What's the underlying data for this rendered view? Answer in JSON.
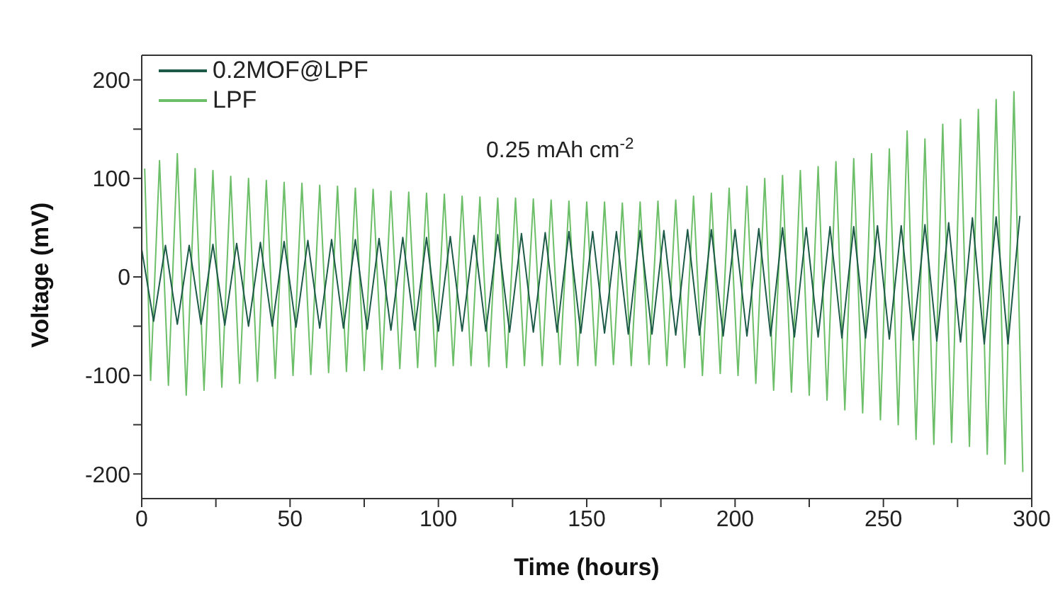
{
  "chart_data": {
    "type": "line",
    "xlabel": "Time (hours)",
    "ylabel": "Voltage (mV)",
    "annotations": [
      "0.25 mAh cm$^{-2}$"
    ],
    "xlim": [
      0,
      300
    ],
    "xticks": [
      0,
      {
        "value": 25,
        "label": null
      },
      50,
      {
        "value": 75,
        "label": null
      },
      100,
      {
        "value": 125,
        "label": null
      },
      150,
      {
        "value": 175,
        "label": null
      },
      200,
      {
        "value": 225,
        "label": null
      },
      250,
      {
        "value": 275,
        "label": null
      },
      300
    ],
    "ylim": [
      -225,
      225
    ],
    "yticks": [
      -200,
      {
        "value": -150,
        "label": null
      },
      -100,
      {
        "value": -50,
        "label": null
      },
      0,
      {
        "value": 50,
        "label": null
      },
      100,
      {
        "value": 150,
        "label": null
      },
      200
    ],
    "legend": "top left",
    "marker": "none",
    "line_style": "solid",
    "series": [
      {
        "name": "0.2MOF@LPF",
        "color": "#1d5a48",
        "x": [
          0,
          4,
          8,
          12,
          16,
          20,
          24,
          28,
          32,
          36,
          40,
          44,
          48,
          52,
          56,
          60,
          64,
          68,
          72,
          76,
          80,
          84,
          88,
          92,
          96,
          100,
          104,
          108,
          112,
          116,
          120,
          124,
          128,
          132,
          136,
          140,
          144,
          148,
          152,
          156,
          160,
          164,
          168,
          172,
          176,
          180,
          184,
          188,
          192,
          196,
          200,
          204,
          208,
          212,
          216,
          220,
          224,
          228,
          232,
          236,
          240,
          244,
          248,
          252,
          256,
          260,
          264,
          268,
          272,
          276,
          280,
          284,
          288,
          292,
          296
        ],
        "values": [
          28,
          -45,
          32,
          -48,
          32,
          -48,
          33,
          -49,
          34,
          -50,
          35,
          -50,
          36,
          -51,
          37,
          -52,
          38,
          -52,
          38,
          -53,
          39,
          -54,
          40,
          -54,
          40,
          -55,
          41,
          -55,
          42,
          -55,
          43,
          -56,
          44,
          -56,
          45,
          -56,
          46,
          -57,
          46,
          -57,
          46,
          -58,
          47,
          -58,
          47,
          -59,
          48,
          -59,
          48,
          -60,
          48,
          -60,
          49,
          -60,
          50,
          -61,
          50,
          -61,
          51,
          -62,
          51,
          -62,
          52,
          -63,
          52,
          -64,
          53,
          -65,
          55,
          -66,
          60,
          -68,
          61,
          -68,
          62
        ]
      },
      {
        "name": "LPF",
        "color": "#6cbf68",
        "x": [
          1,
          3,
          6,
          9,
          12,
          15,
          18,
          21,
          24,
          27,
          30,
          33,
          36,
          39,
          42,
          45,
          48,
          51,
          54,
          57,
          60,
          63,
          66,
          69,
          72,
          75,
          78,
          81,
          84,
          87,
          90,
          93,
          96,
          99,
          102,
          105,
          108,
          111,
          114,
          117,
          120,
          123,
          126,
          129,
          132,
          135,
          138,
          141,
          144,
          147,
          150,
          153,
          156,
          159,
          162,
          165,
          168,
          171,
          174,
          177,
          180,
          183,
          186,
          189,
          192,
          195,
          198,
          201,
          204,
          207,
          210,
          213,
          216,
          219,
          222,
          225,
          228,
          231,
          234,
          237,
          240,
          243,
          246,
          249,
          252,
          255,
          258,
          261,
          264,
          267,
          270,
          273,
          276,
          279,
          282,
          285,
          288,
          291,
          294,
          297
        ],
        "values": [
          110,
          -105,
          118,
          -110,
          125,
          -120,
          110,
          -115,
          108,
          -112,
          102,
          -108,
          100,
          -106,
          98,
          -103,
          96,
          -100,
          95,
          -99,
          93,
          -97,
          92,
          -96,
          90,
          -95,
          89,
          -94,
          87,
          -93,
          86,
          -92,
          85,
          -91,
          84,
          -90,
          82,
          -90,
          81,
          -91,
          80,
          -92,
          80,
          -90,
          79,
          -90,
          78,
          -89,
          77,
          -90,
          76,
          -90,
          76,
          -89,
          75,
          -90,
          76,
          -89,
          77,
          -90,
          78,
          -92,
          82,
          -100,
          85,
          -98,
          90,
          -100,
          92,
          -108,
          100,
          -115,
          103,
          -117,
          108,
          -120,
          112,
          -125,
          117,
          -135,
          120,
          -138,
          125,
          -145,
          130,
          -150,
          148,
          -165,
          140,
          -170,
          155,
          -168,
          160,
          -172,
          170,
          -180,
          180,
          -190,
          188,
          -198
        ]
      }
    ]
  }
}
